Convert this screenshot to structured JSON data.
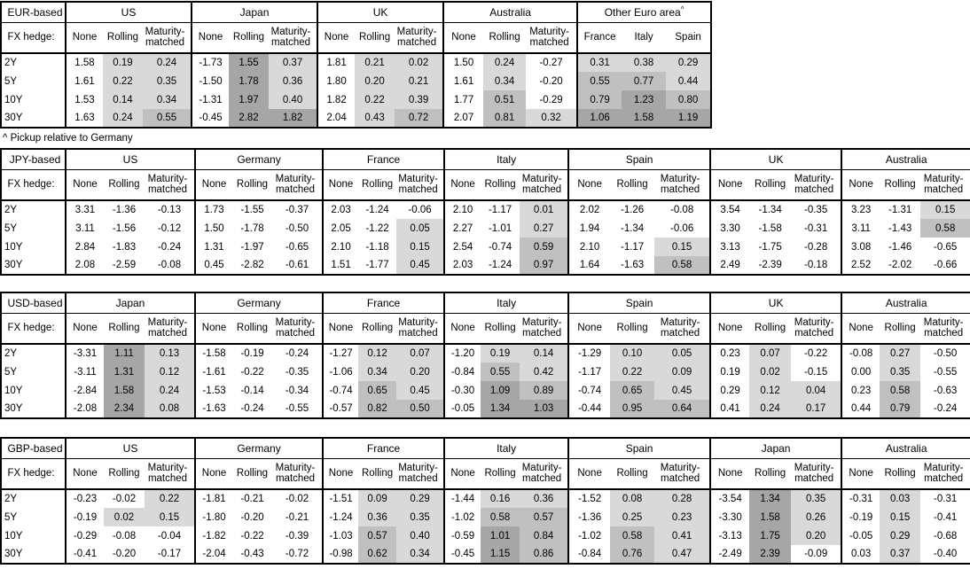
{
  "footnote": "^ Pickup relative to Germany",
  "fx_hedge_label": "FX hedge:",
  "tenors": [
    "2Y",
    "5Y",
    "10Y",
    "30Y"
  ],
  "hedge_columns": [
    "None",
    "Rolling",
    "Maturity-matched"
  ],
  "shading": {
    "rule": "positive values in hedged columns shaded by magnitude",
    "light": "#d9d9d9",
    "light_below": 0.5,
    "medium": "#c0c0c0",
    "medium_below": 1.0,
    "dark": "#a6a6a6"
  },
  "chart_data": [
    {
      "type": "table",
      "title": "EUR-based",
      "groups": [
        {
          "name": "US",
          "rows": [
            [
              1.58,
              0.19,
              0.24
            ],
            [
              1.61,
              0.22,
              0.35
            ],
            [
              1.53,
              0.14,
              0.34
            ],
            [
              1.63,
              0.24,
              0.55
            ]
          ]
        },
        {
          "name": "Japan",
          "rows": [
            [
              -1.73,
              1.55,
              0.37
            ],
            [
              -1.5,
              1.78,
              0.36
            ],
            [
              -1.31,
              1.97,
              0.4
            ],
            [
              -0.45,
              2.82,
              1.82
            ]
          ]
        },
        {
          "name": "UK",
          "rows": [
            [
              1.81,
              0.21,
              0.02
            ],
            [
              1.8,
              0.2,
              0.21
            ],
            [
              1.82,
              0.22,
              0.39
            ],
            [
              2.04,
              0.43,
              0.72
            ]
          ]
        },
        {
          "name": "Australia",
          "rows": [
            [
              1.5,
              0.24,
              -0.27
            ],
            [
              1.61,
              0.34,
              -0.2
            ],
            [
              1.77,
              0.51,
              -0.29
            ],
            [
              2.07,
              0.81,
              0.32
            ]
          ]
        },
        {
          "name": "Other Euro area",
          "superscript": "^",
          "columns": [
            "France",
            "Italy",
            "Spain"
          ],
          "shade_all_columns": true,
          "equal_columns": true,
          "rows": [
            [
              0.31,
              0.38,
              0.29
            ],
            [
              0.55,
              0.77,
              0.44
            ],
            [
              0.79,
              1.23,
              0.8
            ],
            [
              1.06,
              1.58,
              1.19
            ]
          ]
        }
      ]
    },
    {
      "type": "table",
      "title": "JPY-based",
      "groups": [
        {
          "name": "US",
          "rows": [
            [
              3.31,
              -1.36,
              -0.13
            ],
            [
              3.11,
              -1.56,
              -0.12
            ],
            [
              2.84,
              -1.83,
              -0.24
            ],
            [
              2.08,
              -2.59,
              -0.08
            ]
          ]
        },
        {
          "name": "Germany",
          "rows": [
            [
              1.73,
              -1.55,
              -0.37
            ],
            [
              1.5,
              -1.78,
              -0.5
            ],
            [
              1.31,
              -1.97,
              -0.65
            ],
            [
              0.45,
              -2.82,
              -0.61
            ]
          ]
        },
        {
          "name": "France",
          "rows": [
            [
              2.03,
              -1.24,
              -0.06
            ],
            [
              2.05,
              -1.22,
              0.05
            ],
            [
              2.1,
              -1.18,
              0.15
            ],
            [
              1.51,
              -1.77,
              0.45
            ]
          ]
        },
        {
          "name": "Italy",
          "rows": [
            [
              2.1,
              -1.17,
              0.01
            ],
            [
              2.27,
              -1.01,
              0.27
            ],
            [
              2.54,
              -0.74,
              0.59
            ],
            [
              2.03,
              -1.24,
              0.97
            ]
          ]
        },
        {
          "name": "Spain",
          "rows": [
            [
              2.02,
              -1.26,
              -0.08
            ],
            [
              1.94,
              -1.34,
              -0.06
            ],
            [
              2.1,
              -1.17,
              0.15
            ],
            [
              1.64,
              -1.63,
              0.58
            ]
          ]
        },
        {
          "name": "UK",
          "rows": [
            [
              3.54,
              -1.34,
              -0.35
            ],
            [
              3.3,
              -1.58,
              -0.31
            ],
            [
              3.13,
              -1.75,
              -0.28
            ],
            [
              2.49,
              -2.39,
              -0.18
            ]
          ]
        },
        {
          "name": "Australia",
          "rows": [
            [
              3.23,
              -1.31,
              0.15
            ],
            [
              3.11,
              -1.43,
              0.58
            ],
            [
              3.08,
              -1.46,
              -0.65
            ],
            [
              2.52,
              -2.02,
              -0.66
            ]
          ]
        }
      ]
    },
    {
      "type": "table",
      "title": "USD-based",
      "groups": [
        {
          "name": "Japan",
          "rows": [
            [
              -3.31,
              1.11,
              0.13
            ],
            [
              -3.11,
              1.31,
              0.12
            ],
            [
              -2.84,
              1.58,
              0.24
            ],
            [
              -2.08,
              2.34,
              0.08
            ]
          ]
        },
        {
          "name": "Germany",
          "rows": [
            [
              -1.58,
              -0.19,
              -0.24
            ],
            [
              -1.61,
              -0.22,
              -0.35
            ],
            [
              -1.53,
              -0.14,
              -0.34
            ],
            [
              -1.63,
              -0.24,
              -0.55
            ]
          ]
        },
        {
          "name": "France",
          "rows": [
            [
              -1.27,
              0.12,
              0.07
            ],
            [
              -1.06,
              0.34,
              0.2
            ],
            [
              -0.74,
              0.65,
              0.45
            ],
            [
              -0.57,
              0.82,
              0.5
            ]
          ]
        },
        {
          "name": "Italy",
          "rows": [
            [
              -1.2,
              0.19,
              0.14
            ],
            [
              -0.84,
              0.55,
              0.42
            ],
            [
              -0.3,
              1.09,
              0.89
            ],
            [
              -0.05,
              1.34,
              1.03
            ]
          ]
        },
        {
          "name": "Spain",
          "rows": [
            [
              -1.29,
              0.1,
              0.05
            ],
            [
              -1.17,
              0.22,
              0.09
            ],
            [
              -0.74,
              0.65,
              0.45
            ],
            [
              -0.44,
              0.95,
              0.64
            ]
          ]
        },
        {
          "name": "UK",
          "rows": [
            [
              0.23,
              0.07,
              -0.22
            ],
            [
              0.19,
              0.02,
              -0.15
            ],
            [
              0.29,
              0.12,
              0.04
            ],
            [
              0.41,
              0.24,
              0.17
            ]
          ]
        },
        {
          "name": "Australia",
          "rows": [
            [
              -0.08,
              0.27,
              -0.5
            ],
            [
              0.0,
              0.35,
              -0.55
            ],
            [
              0.23,
              0.58,
              -0.63
            ],
            [
              0.44,
              0.79,
              -0.24
            ]
          ]
        }
      ]
    },
    {
      "type": "table",
      "title": "GBP-based",
      "groups": [
        {
          "name": "US",
          "rows": [
            [
              -0.23,
              -0.02,
              0.22
            ],
            [
              -0.19,
              0.02,
              0.15
            ],
            [
              -0.29,
              -0.08,
              -0.04
            ],
            [
              -0.41,
              -0.2,
              -0.17
            ]
          ]
        },
        {
          "name": "Germany",
          "rows": [
            [
              -1.81,
              -0.21,
              -0.02
            ],
            [
              -1.8,
              -0.2,
              -0.21
            ],
            [
              -1.82,
              -0.22,
              -0.39
            ],
            [
              -2.04,
              -0.43,
              -0.72
            ]
          ]
        },
        {
          "name": "France",
          "rows": [
            [
              -1.51,
              0.09,
              0.29
            ],
            [
              -1.24,
              0.36,
              0.35
            ],
            [
              -1.03,
              0.57,
              0.4
            ],
            [
              -0.98,
              0.62,
              0.34
            ]
          ]
        },
        {
          "name": "Italy",
          "rows": [
            [
              -1.44,
              0.16,
              0.36
            ],
            [
              -1.02,
              0.58,
              0.57
            ],
            [
              -0.59,
              1.01,
              0.84
            ],
            [
              -0.45,
              1.15,
              0.86
            ]
          ]
        },
        {
          "name": "Spain",
          "rows": [
            [
              -1.52,
              0.08,
              0.28
            ],
            [
              -1.36,
              0.25,
              0.23
            ],
            [
              -1.02,
              0.58,
              0.41
            ],
            [
              -0.84,
              0.76,
              0.47
            ]
          ]
        },
        {
          "name": "Japan",
          "rows": [
            [
              -3.54,
              1.34,
              0.35
            ],
            [
              -3.3,
              1.58,
              0.26
            ],
            [
              -3.13,
              1.75,
              0.2
            ],
            [
              -2.49,
              2.39,
              -0.09
            ]
          ]
        },
        {
          "name": "Australia",
          "rows": [
            [
              -0.31,
              0.03,
              -0.31
            ],
            [
              -0.19,
              0.15,
              -0.41
            ],
            [
              -0.05,
              0.29,
              -0.68
            ],
            [
              0.03,
              0.37,
              -0.4
            ]
          ]
        }
      ]
    }
  ]
}
